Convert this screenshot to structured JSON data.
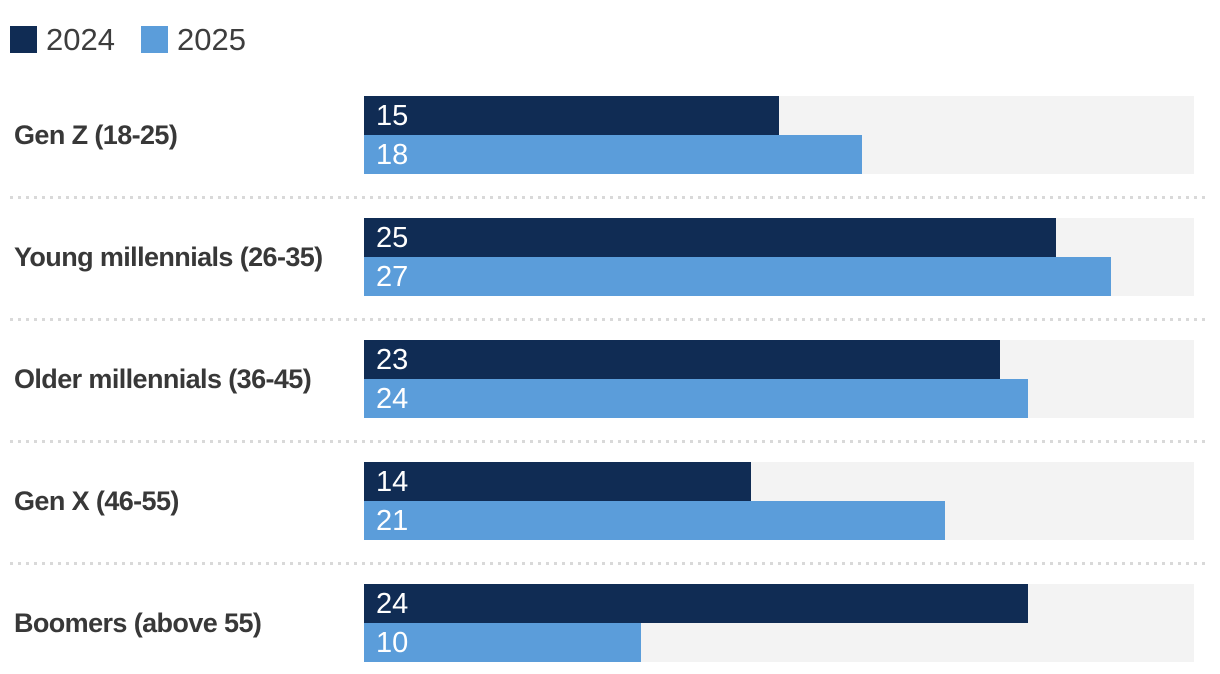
{
  "legend": {
    "items": [
      {
        "label": "2024",
        "color": "#102c54"
      },
      {
        "label": "2025",
        "color": "#5b9dda"
      }
    ]
  },
  "chart_data": {
    "type": "bar",
    "orientation": "horizontal",
    "title": "",
    "categories": [
      "Gen Z (18-25)",
      "Young millennials (26-35)",
      "Older millennials (36-45)",
      "Gen X (46-55)",
      "Boomers (above 55)"
    ],
    "series": [
      {
        "name": "2024",
        "color": "#102c54",
        "values": [
          15,
          25,
          23,
          14,
          24
        ]
      },
      {
        "name": "2025",
        "color": "#5b9dda",
        "values": [
          18,
          27,
          24,
          21,
          10
        ]
      }
    ],
    "xlim": [
      0,
      30
    ],
    "value_labels": "inside-start",
    "legend_position": "top-left",
    "grid": false,
    "track_color": "#f3f3f3",
    "separator_color": "#d9d9d9",
    "label_color": "#383838"
  }
}
